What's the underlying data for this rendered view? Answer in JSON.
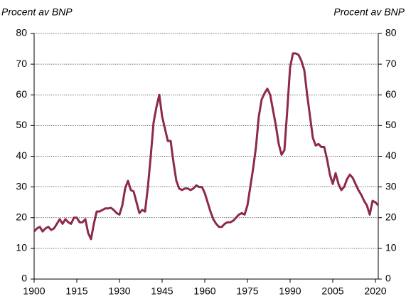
{
  "chart_data": {
    "type": "line",
    "ylabel": "Procent av BNP",
    "y2label": "Procent av BNP",
    "x": [
      1900,
      1901,
      1902,
      1903,
      1904,
      1905,
      1906,
      1907,
      1908,
      1909,
      1910,
      1911,
      1912,
      1913,
      1914,
      1915,
      1916,
      1917,
      1918,
      1919,
      1920,
      1921,
      1922,
      1923,
      1924,
      1925,
      1926,
      1927,
      1928,
      1929,
      1930,
      1931,
      1932,
      1933,
      1934,
      1935,
      1936,
      1937,
      1938,
      1939,
      1940,
      1941,
      1942,
      1943,
      1944,
      1945,
      1946,
      1947,
      1948,
      1949,
      1950,
      1951,
      1952,
      1953,
      1954,
      1955,
      1956,
      1957,
      1958,
      1959,
      1960,
      1961,
      1962,
      1963,
      1964,
      1965,
      1966,
      1967,
      1968,
      1969,
      1970,
      1971,
      1972,
      1973,
      1974,
      1975,
      1976,
      1977,
      1978,
      1979,
      1980,
      1981,
      1982,
      1983,
      1984,
      1985,
      1986,
      1987,
      1988,
      1989,
      1990,
      1991,
      1992,
      1993,
      1994,
      1995,
      1996,
      1997,
      1998,
      1999,
      2000,
      2001,
      2002,
      2003,
      2004,
      2005,
      2006,
      2007,
      2008,
      2009,
      2010,
      2011,
      2012,
      2013,
      2014,
      2015,
      2016,
      2017,
      2018,
      2019,
      2020,
      2021
    ],
    "series": [
      {
        "color": "#8c2a47",
        "values": [
          15.5,
          16.5,
          17,
          15.5,
          16.5,
          17,
          16,
          16.5,
          18,
          19.5,
          18,
          19.5,
          18.5,
          18,
          20,
          20,
          18.5,
          18.5,
          19.5,
          15,
          13,
          18,
          22,
          22,
          22.5,
          23,
          23,
          23.2,
          22.5,
          21.5,
          21,
          24,
          29.5,
          32,
          29,
          28.5,
          25,
          21.5,
          22.5,
          22,
          30,
          40,
          51,
          56,
          60,
          53,
          49,
          45,
          45,
          38,
          32,
          29.5,
          29,
          29.5,
          29.5,
          29,
          29.5,
          30.5,
          30,
          30,
          28,
          25,
          22,
          19.5,
          18,
          17,
          17,
          18,
          18.5,
          18.5,
          19,
          20,
          21,
          21.5,
          21,
          24,
          30,
          36,
          43,
          53,
          58.5,
          60.5,
          62,
          60,
          55,
          50,
          44,
          40.5,
          42,
          55,
          69,
          73.5,
          73.5,
          73,
          71,
          68,
          60,
          53,
          46,
          43.5,
          44,
          43,
          43,
          39,
          34,
          31,
          34.5,
          31,
          29,
          30,
          32.5,
          34,
          33,
          31,
          29,
          27.5,
          25.5,
          24,
          21,
          25.5,
          25,
          24
        ]
      }
    ],
    "xlim": [
      1900,
      2021
    ],
    "xticks": [
      1900,
      1915,
      1930,
      1945,
      1960,
      1975,
      1990,
      2005,
      2020
    ],
    "ylim": [
      0,
      80
    ],
    "yticks": [
      0,
      10,
      20,
      30,
      40,
      50,
      60,
      70,
      80
    ],
    "y2lim": [
      0,
      80
    ],
    "y2ticks": [
      0,
      10,
      20,
      30,
      40,
      50,
      60,
      70,
      80
    ],
    "grid": true
  }
}
